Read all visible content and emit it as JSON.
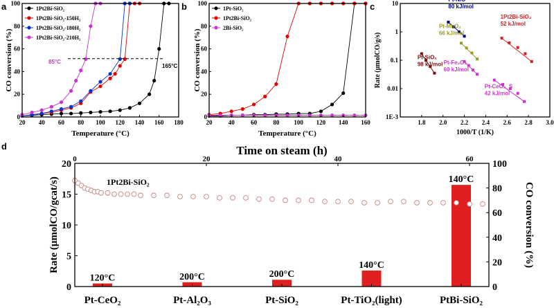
{
  "panels": {
    "a": "a",
    "b": "b",
    "c": "c",
    "d": "d"
  },
  "chart_data": [
    {
      "id": "a",
      "type": "line",
      "xlabel": "Temperature (°C)",
      "ylabel": "CO conversion (%)",
      "xlim": [
        20,
        180
      ],
      "ylim": [
        0,
        100
      ],
      "xticks": [
        20,
        40,
        60,
        80,
        100,
        120,
        140,
        160,
        180
      ],
      "yticks": [
        0,
        20,
        40,
        60,
        80,
        100
      ],
      "legend_position": "top-left",
      "series": [
        {
          "name": "1Pt2Bi-SiO₂",
          "color": "#000000",
          "x": [
            20,
            30,
            40,
            50,
            60,
            70,
            80,
            90,
            100,
            110,
            120,
            130,
            140,
            150,
            155,
            160,
            165,
            170
          ],
          "y": [
            1,
            1.5,
            2,
            2.5,
            3,
            3,
            3.5,
            4,
            4.5,
            5,
            6,
            8,
            12,
            20,
            32,
            60,
            100,
            100
          ]
        },
        {
          "name": "1Pt2Bi-SiO₂-150H₂",
          "color": "#e00000",
          "x": [
            20,
            30,
            40,
            50,
            60,
            70,
            80,
            90,
            100,
            110,
            115,
            120,
            125,
            130,
            135,
            140
          ],
          "y": [
            1,
            2,
            3,
            4,
            6,
            8,
            12,
            22,
            27,
            34,
            38,
            45,
            51,
            100,
            100,
            100
          ]
        },
        {
          "name": "1Pt2Bi-SiO₂-180H₂",
          "color": "#0033cc",
          "x": [
            20,
            30,
            40,
            50,
            60,
            70,
            80,
            90,
            100,
            110,
            120,
            125,
            130
          ],
          "y": [
            1,
            2,
            3,
            5,
            7,
            9,
            14,
            23,
            31,
            38,
            51,
            100,
            100
          ]
        },
        {
          "name": "1Pt2Bi-SiO₂-210H₂",
          "color": "#cc33cc",
          "x": [
            20,
            30,
            40,
            50,
            60,
            70,
            75,
            80,
            85,
            90,
            95,
            100
          ],
          "y": [
            2,
            4,
            6,
            9,
            13,
            23,
            32,
            41,
            51,
            80,
            100,
            100
          ]
        }
      ],
      "annotations": [
        {
          "text": "85°C",
          "color": "#cc33cc"
        },
        {
          "text": "165°C",
          "color": "#000000"
        }
      ]
    },
    {
      "id": "b",
      "type": "line",
      "xlabel": "Temperature (°C)",
      "ylabel": "CO conversion (%)",
      "xlim": [
        20,
        160
      ],
      "ylim": [
        0,
        100
      ],
      "xticks": [
        20,
        40,
        60,
        80,
        100,
        120,
        140,
        160
      ],
      "yticks": [
        0,
        20,
        40,
        60,
        80,
        100
      ],
      "legend_position": "top-left",
      "series": [
        {
          "name": "1Pt-SiO₂",
          "color": "#000000",
          "x": [
            20,
            30,
            40,
            50,
            60,
            70,
            80,
            90,
            100,
            110,
            120,
            130,
            140,
            150,
            160
          ],
          "y": [
            1,
            1,
            1.5,
            1.5,
            2,
            2,
            2.5,
            2.5,
            3,
            3,
            5,
            11,
            21,
            100,
            100
          ]
        },
        {
          "name": "1Pt2Bi-SiO₂",
          "color": "#e00000",
          "x": [
            20,
            30,
            40,
            50,
            60,
            70,
            80,
            90,
            100,
            110,
            120,
            130,
            140,
            150,
            160
          ],
          "y": [
            2,
            3,
            5,
            7,
            11,
            18,
            29,
            71,
            100,
            100,
            100,
            100,
            100,
            100,
            100
          ]
        },
        {
          "name": "2Bi-SiO₂",
          "color": "#cc33cc",
          "x": [
            20,
            30,
            40,
            50,
            60,
            70,
            80,
            90,
            100,
            110,
            120,
            130,
            140,
            150,
            160
          ],
          "y": [
            1.5,
            1.5,
            1.5,
            1.5,
            1.5,
            1.5,
            1.5,
            1.5,
            1.5,
            1.5,
            1.5,
            1.5,
            1.5,
            1.5,
            1.5
          ]
        }
      ]
    },
    {
      "id": "c",
      "type": "scatter",
      "xlabel": "1000/T (1/K)",
      "ylabel": "Rate (μmolCO/g/s)",
      "xscale": "linear",
      "yscale": "log",
      "xlim": [
        1.6,
        3.0
      ],
      "ylim": [
        0.001,
        10
      ],
      "xticks": [
        1.8,
        2.0,
        2.2,
        2.4,
        2.6,
        2.8,
        3.0
      ],
      "yticks": [
        0.001,
        0.01,
        0.1,
        1,
        10
      ],
      "ytick_labels": [
        "1E-3",
        "0.01",
        "0.1",
        "1",
        "10"
      ],
      "series": [
        {
          "name": "Pt-NiO",
          "label": "80 kJ/mol",
          "color": "#000080",
          "x": [
            2.05,
            2.1,
            2.15,
            2.2
          ],
          "y": [
            2.2,
            1.5,
            1.0,
            0.7
          ]
        },
        {
          "name": "Pt-MnO₂",
          "label": "66 kJ/mol",
          "color": "#9a9a1c",
          "x": [
            2.17,
            2.22,
            2.27,
            2.32
          ],
          "y": [
            0.4,
            0.27,
            0.18,
            0.11
          ]
        },
        {
          "name": "1Pt2Bi-SiO₂",
          "label": "52 kJ/mol",
          "color": "#cc2222",
          "x": [
            2.55,
            2.62,
            2.7,
            2.77,
            2.83
          ],
          "y": [
            0.6,
            0.41,
            0.28,
            0.17,
            0.09
          ]
        },
        {
          "name": "Pt-SiO₂",
          "label": "98 kJ/mol",
          "color": "#7a1010",
          "x": [
            1.8,
            1.84,
            1.88,
            1.92
          ],
          "y": [
            0.17,
            0.1,
            0.06,
            0.035
          ]
        },
        {
          "name": "Pt-Fe₂O₃",
          "label": "60 kJ/mol",
          "color": "#cc33cc",
          "x": [
            2.2,
            2.24,
            2.28,
            2.32
          ],
          "y": [
            0.09,
            0.065,
            0.045,
            0.032
          ]
        },
        {
          "name": "Pt-CeO₂_S",
          "label": "42 kJ/mol",
          "color": "#cc33cc",
          "x": [
            2.48,
            2.56,
            2.63,
            2.7,
            2.76
          ],
          "y": [
            0.02,
            0.014,
            0.01,
            0.0068,
            0.0035
          ]
        }
      ]
    },
    {
      "id": "d",
      "type": "bar",
      "title": "Time on steam (h)",
      "ylabel": "Rate (μmolCO/gcat/s)",
      "y2label": "CO conversion (%)",
      "ylim": [
        0,
        20
      ],
      "y2lim": [
        0,
        100
      ],
      "yticks": [
        0,
        5,
        10,
        15,
        20
      ],
      "y2ticks": [
        0,
        20,
        40,
        60,
        80,
        100
      ],
      "top_xlim": [
        0,
        60
      ],
      "top_xticks": [
        0,
        20,
        40,
        60
      ],
      "categories": [
        "Pt-CeO₂",
        "Pt-Al₂O₃",
        "Pt-SiO₂",
        "Pt-TiO₂(light)",
        "PtBi-SiO₂"
      ],
      "values": [
        0.5,
        0.7,
        1.1,
        2.6,
        16.5
      ],
      "bar_labels": [
        "120°C",
        "200°C",
        "200°C",
        "140°C",
        "140°C"
      ],
      "bar_color": "#e02020",
      "line_series": {
        "name": "1Pt2Bi-SiO₂",
        "color": "#c98080",
        "x": [
          0,
          0.5,
          1,
          1.5,
          2,
          2.5,
          3,
          3.5,
          4,
          5,
          6,
          7,
          8,
          9,
          10,
          12,
          14,
          16,
          18,
          20,
          22,
          24,
          26,
          28,
          30,
          32,
          34,
          36,
          38,
          40,
          42,
          44,
          46,
          48,
          50,
          52,
          54,
          56,
          58,
          60,
          62
        ],
        "y": [
          86,
          84,
          82,
          80,
          79,
          78,
          77,
          77,
          76,
          76,
          75,
          75,
          75,
          75,
          74,
          74,
          74,
          73,
          73,
          73,
          72,
          72,
          72,
          71,
          71,
          70,
          70,
          70,
          69,
          69,
          69,
          68,
          68,
          69,
          69,
          68,
          68,
          68,
          68,
          67,
          67
        ]
      }
    }
  ]
}
